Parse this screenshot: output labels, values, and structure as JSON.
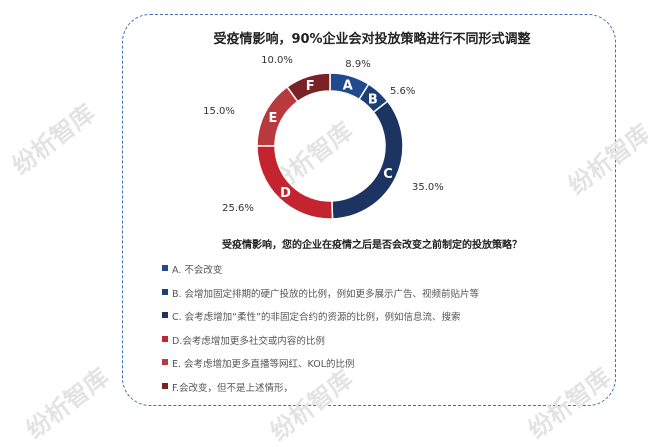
{
  "chart_data": {
    "type": "pie",
    "title": "受疫情影响，90%企业会对投放策略进行不同形式调整",
    "question": "受疫情影响，您的企业在疫情之后是否会改变之前制定的投放策略？",
    "slices": [
      {
        "letter": "A",
        "value": 8.9,
        "value_label": "8.9%",
        "color": "#1f4b8e",
        "legend": "A. 不会改变"
      },
      {
        "letter": "B",
        "value": 5.6,
        "value_label": "5.6%",
        "color": "#1d3f78",
        "legend": "B. 会增加固定排期的硬广投放的比例，例如更多展示广告、视频前贴片等"
      },
      {
        "letter": "C",
        "value": 35.0,
        "value_label": "35.0%",
        "color": "#1c3461",
        "legend": "C. 会考虑增加“柔性”的非固定合约的资源的比例，例如信息流、搜索"
      },
      {
        "letter": "D",
        "value": 25.6,
        "value_label": "25.6%",
        "color": "#c42330",
        "legend": "D.会考虑增加更多社交或内容的比例"
      },
      {
        "letter": "E",
        "value": 15.0,
        "value_label": "15.0%",
        "color": "#b83a3f",
        "legend": "E. 会考虑增加更多直播等网红、KOL的比例"
      },
      {
        "letter": "F",
        "value": 10.0,
        "value_label": "10.0%",
        "color": "#7b2226",
        "legend": "F.会改变，但不是上述情形，"
      }
    ]
  },
  "watermark": "纷析智库"
}
